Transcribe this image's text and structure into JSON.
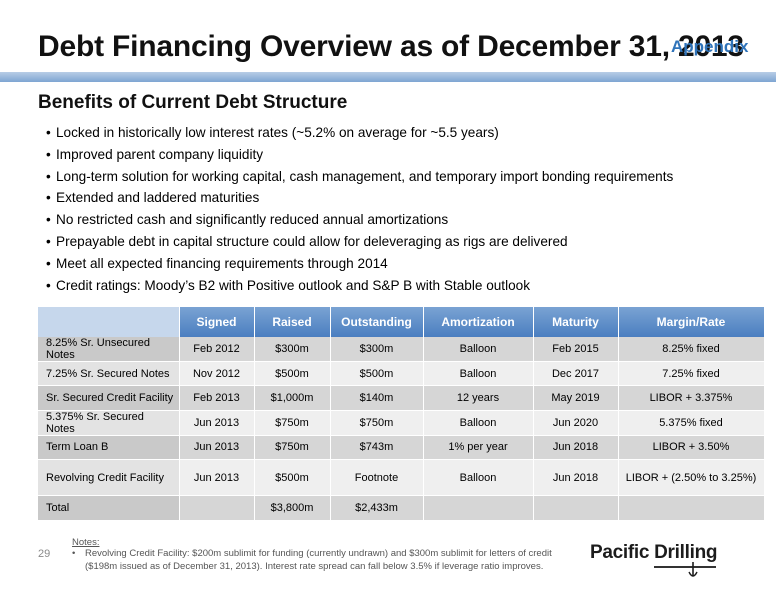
{
  "header": {
    "title": "Debt Financing Overview as of December 31, 2013",
    "tag": "Appendix"
  },
  "section": {
    "title": "Benefits of Current Debt Structure",
    "bullets": [
      "Locked in historically low interest rates (~5.2% on average for ~5.5 years)",
      "Improved parent company liquidity",
      "Long-term solution for working capital, cash management, and temporary import bonding requirements",
      "Extended and laddered maturities",
      "No restricted cash and significantly reduced annual amortizations",
      "Prepayable debt in capital structure could allow for deleveraging as rigs are delivered",
      "Meet all expected financing requirements through 2014",
      "Credit ratings: Moody’s B2 with Positive outlook and S&P B with Stable outlook"
    ]
  },
  "table": {
    "headers": [
      "",
      "Signed",
      "Raised",
      "Outstanding",
      "Amortization",
      "Maturity",
      "Margin/Rate"
    ],
    "rows": [
      [
        "8.25% Sr. Unsecured Notes",
        "Feb 2012",
        "$300m",
        "$300m",
        "Balloon",
        "Feb 2015",
        "8.25% fixed"
      ],
      [
        "7.25% Sr. Secured Notes",
        "Nov 2012",
        "$500m",
        "$500m",
        "Balloon",
        "Dec 2017",
        "7.25% fixed"
      ],
      [
        "Sr. Secured Credit Facility",
        "Feb 2013",
        "$1,000m",
        "$140m",
        "12 years",
        "May 2019",
        "LIBOR + 3.375%"
      ],
      [
        "5.375% Sr. Secured Notes",
        "Jun 2013",
        "$750m",
        "$750m",
        "Balloon",
        "Jun 2020",
        "5.375% fixed"
      ],
      [
        "Term Loan B",
        "Jun 2013",
        "$750m",
        "$743m",
        "1% per year",
        "Jun 2018",
        "LIBOR + 3.50%"
      ],
      [
        "Revolving Credit Facility",
        "Jun 2013",
        "$500m",
        "Footnote",
        "Balloon",
        "Jun 2018",
        "LIBOR + (2.50% to 3.25%)"
      ]
    ],
    "total": [
      "Total",
      "",
      "$3,800m",
      "$2,433m",
      "",
      "",
      ""
    ]
  },
  "footer": {
    "page_number": "29",
    "notes_title": "Notes:",
    "note_bullet": "•",
    "note": "Revolving Credit Facility: $200m sublimit for funding (currently undrawn) and $300m sublimit for letters of credit ($198m issued as of December 31, 2013).  Interest rate spread can fall below 3.5% if leverage ratio improves.",
    "logo_text": "Pacific Drilling"
  },
  "colors": {
    "accent": "#2f73b9",
    "header_fill": "#5b8ac6",
    "row_dark": "#d6d6d6",
    "row_light": "#efefef"
  }
}
